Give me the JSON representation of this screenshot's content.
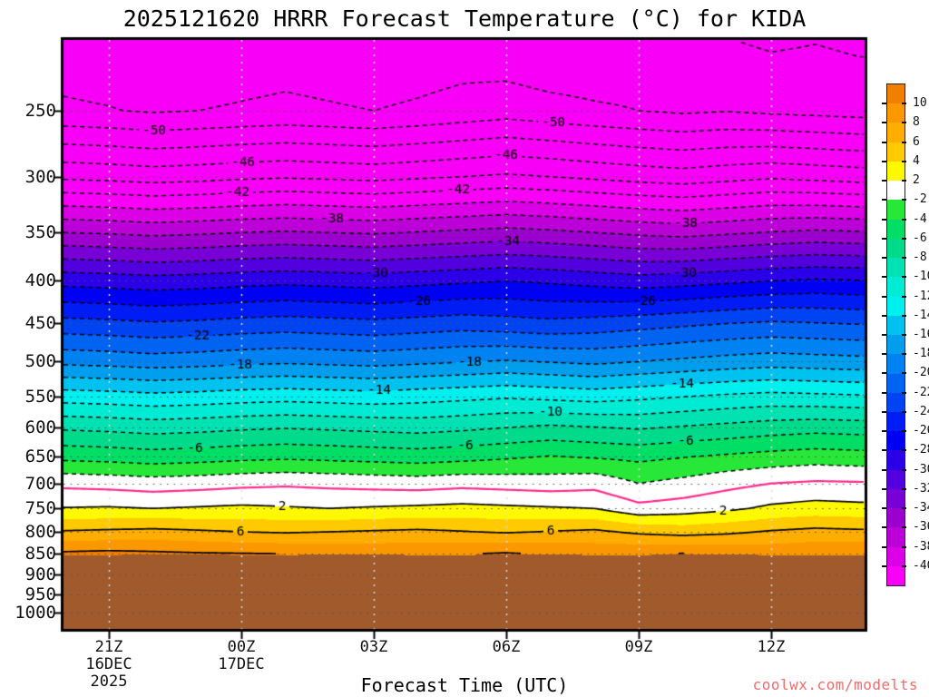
{
  "title": "2025121620 HRRR Forecast Temperature (°C) for KIDA",
  "branding": {
    "text": "coolwx.com/modelts",
    "color": "#F26B6B"
  },
  "chart_data": {
    "type": "filled_contour",
    "title": "2025121620 HRRR Forecast Temperature (°C) for KIDA",
    "station": "KIDA",
    "x_axis": {
      "label": "Forecast Time (UTC)",
      "ticks": [
        {
          "label": "21Z",
          "hour": 21,
          "sub": [
            "16DEC",
            "2025"
          ]
        },
        {
          "label": "00Z",
          "hour": 24,
          "sub": [
            "17DEC"
          ]
        },
        {
          "label": "03Z",
          "hour": 27,
          "sub": []
        },
        {
          "label": "06Z",
          "hour": 30,
          "sub": []
        },
        {
          "label": "09Z",
          "hour": 33,
          "sub": []
        },
        {
          "label": "12Z",
          "hour": 36,
          "sub": []
        }
      ]
    },
    "y_axis": {
      "unit": "hPa",
      "scale": "log-pressure",
      "ticks": [
        250,
        300,
        350,
        400,
        450,
        500,
        550,
        600,
        650,
        700,
        750,
        800,
        850,
        900,
        950,
        1000
      ]
    },
    "grid": {
      "times_hours": [
        20,
        21,
        22,
        23,
        24,
        25,
        26,
        27,
        28,
        29,
        30,
        31,
        32,
        33,
        34,
        35,
        36,
        37,
        38
      ],
      "levels_hpa": [
        200,
        250,
        300,
        350,
        400,
        450,
        500,
        550,
        600,
        650,
        700,
        750,
        800,
        850
      ],
      "temperature_c": [
        [
          -53.4,
          -53.6,
          -54.3,
          -53.9,
          -53.5,
          -53.3,
          -53.5,
          -53.8,
          -53.6,
          -53.4,
          -53.9,
          -54.4,
          -54.2,
          -53.7,
          -53.5,
          -54.2,
          -54.6,
          -54.3,
          -54.6
        ],
        [
          -51.7,
          -51.9,
          -52.2,
          -52.0,
          -51.8,
          -51.6,
          -51.8,
          -52.0,
          -51.7,
          -51.3,
          -50.9,
          -51.3,
          -51.7,
          -52.0,
          -52.3,
          -52.1,
          -52.4,
          -52.6,
          -52.8
        ],
        [
          -44.4,
          -44.6,
          -44.9,
          -44.7,
          -44.4,
          -44.2,
          -44.4,
          -44.6,
          -44.3,
          -44.0,
          -43.7,
          -44.0,
          -44.4,
          -44.8,
          -45.1,
          -44.7,
          -44.3,
          -44.6,
          -44.9
        ],
        [
          -36.0,
          -36.2,
          -36.5,
          -36.3,
          -36.0,
          -35.8,
          -36.0,
          -36.2,
          -35.9,
          -35.6,
          -35.3,
          -35.6,
          -36.0,
          -36.4,
          -36.7,
          -36.3,
          -35.9,
          -35.6,
          -35.8
        ],
        [
          -28.7,
          -28.9,
          -29.2,
          -29.0,
          -28.7,
          -28.5,
          -28.7,
          -28.9,
          -28.6,
          -28.3,
          -28.0,
          -28.3,
          -28.7,
          -29.1,
          -28.8,
          -28.4,
          -28.0,
          -27.7,
          -27.9
        ],
        [
          -23.3,
          -23.5,
          -23.8,
          -23.6,
          -23.3,
          -23.1,
          -23.3,
          -23.5,
          -23.2,
          -22.9,
          -23.2,
          -23.5,
          -23.2,
          -22.8,
          -22.4,
          -22.0,
          -21.7,
          -21.9,
          -22.1
        ],
        [
          -18.5,
          -18.7,
          -19.0,
          -18.8,
          -18.5,
          -18.3,
          -18.5,
          -18.7,
          -18.4,
          -18.1,
          -17.8,
          -18.1,
          -18.4,
          -18.0,
          -17.6,
          -17.2,
          -16.9,
          -17.1,
          -17.3
        ],
        [
          -13.0,
          -13.2,
          -13.5,
          -13.3,
          -13.0,
          -12.8,
          -13.0,
          -13.2,
          -12.9,
          -12.6,
          -12.3,
          -12.6,
          -12.9,
          -12.5,
          -12.1,
          -11.7,
          -11.4,
          -11.6,
          -11.8
        ],
        [
          -8.3,
          -8.5,
          -8.8,
          -8.6,
          -8.3,
          -8.1,
          -8.3,
          -8.5,
          -8.7,
          -8.4,
          -8.0,
          -7.6,
          -7.9,
          -8.2,
          -7.8,
          -7.4,
          -7.0,
          -6.7,
          -6.9
        ],
        [
          -4.6,
          -4.8,
          -5.1,
          -4.9,
          -4.6,
          -4.4,
          -4.6,
          -4.8,
          -5.0,
          -4.7,
          -4.3,
          -3.9,
          -4.2,
          -4.5,
          -4.1,
          -3.7,
          -3.3,
          -3.0,
          -3.2
        ],
        [
          -0.5,
          -0.7,
          -1.0,
          -0.8,
          -0.5,
          -0.3,
          -0.5,
          -0.7,
          -0.9,
          -0.6,
          -0.8,
          -1.0,
          -0.7,
          -2.0,
          -1.4,
          -0.6,
          0.0,
          0.3,
          0.2
        ],
        [
          2.1,
          2.2,
          2.0,
          2.2,
          2.4,
          2.2,
          2.0,
          2.2,
          2.4,
          2.6,
          2.4,
          2.2,
          2.0,
          0.6,
          1.0,
          1.6,
          2.4,
          2.8,
          2.6
        ],
        [
          6.2,
          6.4,
          6.6,
          6.3,
          6.0,
          5.8,
          6.0,
          6.2,
          6.4,
          6.1,
          5.8,
          6.1,
          6.4,
          5.6,
          5.2,
          5.6,
          6.2,
          6.6,
          6.4
        ],
        [
          10.4,
          10.6,
          10.4,
          10.2,
          10.1,
          10.0,
          9.8,
          9.6,
          9.7,
          9.9,
          10.2,
          9.8,
          9.5,
          9.8,
          10.1,
          9.7,
          9.4,
          9.7,
          9.9
        ]
      ]
    },
    "surface_pressure_hpa": [
      853,
      853,
      852.5,
      852.5,
      853,
      853,
      852.5,
      852.5,
      853,
      853,
      852.5,
      852.5,
      853,
      853,
      852.5,
      852.5,
      853,
      853,
      853
    ],
    "terrain_color": "#A05A2C",
    "palette": {
      "band_edges_c": [
        -40,
        -38,
        -36,
        -34,
        -32,
        -30,
        -28,
        -26,
        -24,
        -22,
        -20,
        -18,
        -16,
        -14,
        -12,
        -10,
        -8,
        -6,
        -4,
        -2,
        2,
        4,
        6,
        8,
        10
      ],
      "colors_cold_to_warm": [
        "#F800F8",
        "#DB00E6",
        "#BB00D8",
        "#9C00CE",
        "#7800D6",
        "#5200DE",
        "#2B00E8",
        "#0000F2",
        "#001CF5",
        "#0043F2",
        "#0063F2",
        "#0082F2",
        "#009EEC",
        "#00C2F0",
        "#00EFEF",
        "#00EBD4",
        "#00E2B2",
        "#00DB8B",
        "#00DE66",
        "#27E838",
        "#FFFFFF",
        "#FFF900",
        "#FFCB00",
        "#FFAE00",
        "#FB9800",
        "#F28000"
      ]
    },
    "colorbar": {
      "tick_labels": [
        10,
        8,
        6,
        4,
        2,
        -2,
        -4,
        -6,
        -8,
        -10,
        -12,
        -14,
        -16,
        -18,
        -20,
        -22,
        -24,
        -26,
        -28,
        -30,
        -32,
        -34,
        -36,
        -38,
        -40
      ]
    },
    "contours": {
      "negative_dashed": {
        "min": -54,
        "max": -2,
        "step": 2,
        "color": "#000000"
      },
      "zero_line_color": "#FF2B8C",
      "positive_solid_levels": [
        2,
        6,
        10
      ],
      "labels": [
        {
          "level": -50,
          "x": [
            170,
            610
          ]
        },
        {
          "level": -46,
          "x": [
            268,
            558
          ]
        },
        {
          "level": -42,
          "x": [
            262,
            505
          ]
        },
        {
          "level": -38,
          "x": [
            366,
            756
          ]
        },
        {
          "level": -34,
          "x": [
            560
          ]
        },
        {
          "level": -30,
          "x": [
            415,
            755
          ]
        },
        {
          "level": -26,
          "x": [
            462,
            710
          ]
        },
        {
          "level": -22,
          "x": [
            218
          ]
        },
        {
          "level": -18,
          "x": [
            265,
            518
          ]
        },
        {
          "level": -14,
          "x": [
            418,
            752
          ]
        },
        {
          "level": -10,
          "x": [
            607
          ]
        },
        {
          "level": -6,
          "x": [
            215,
            513,
            756
          ]
        },
        {
          "level": 2,
          "x": [
            311,
            797
          ]
        },
        {
          "level": 6,
          "x": [
            265,
            607
          ]
        }
      ]
    },
    "gridlines": {
      "horizontal_dotted_color": "#555555",
      "vertical_dotted_color": "#DCDCDC"
    }
  }
}
